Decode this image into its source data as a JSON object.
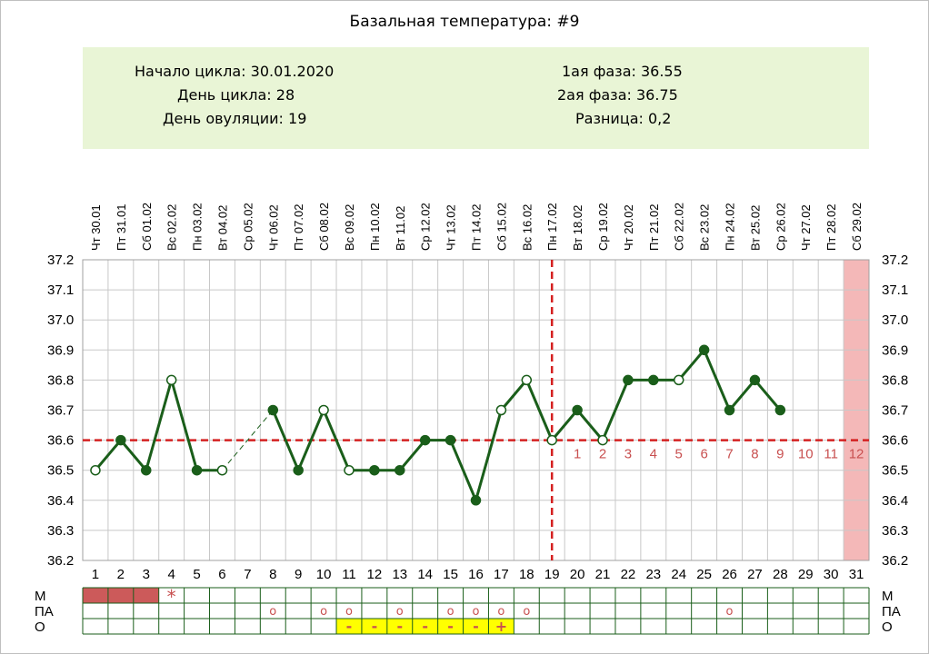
{
  "chart_data": {
    "type": "line",
    "title": "Базальная температура: #9",
    "info": {
      "cycle_start": "Начало цикла: 30.01.2020",
      "cycle_day": "День цикла: 28",
      "ovulation_day": "День овуляции: 19",
      "phase1": "1ая фаза: 36.55",
      "phase2": "2ая фаза: 36.75",
      "difference": "Разница: 0,2"
    },
    "dates": [
      "Чт 30.01",
      "Пт 31.01",
      "Сб 01.02",
      "Вс 02.02",
      "Пн 03.02",
      "Вт 04.02",
      "Ср 05.02",
      "Чт 06.02",
      "Пт 07.02",
      "Сб 08.02",
      "Вс 09.02",
      "Пн 10.02",
      "Вт 11.02",
      "Ср 12.02",
      "Чт 13.02",
      "Пт 14.02",
      "Сб 15.02",
      "Вс 16.02",
      "Пн 17.02",
      "Вт 18.02",
      "Ср 19.02",
      "Чт 20.02",
      "Пт 21.02",
      "Сб 22.02",
      "Вс 23.02",
      "Пн 24.02",
      "Вт 25.02",
      "Ср 26.02",
      "Чт 27.02",
      "Пт 28.02",
      "Сб 29.02"
    ],
    "days": [
      "1",
      "2",
      "3",
      "4",
      "5",
      "6",
      "7",
      "8",
      "9",
      "10",
      "11",
      "12",
      "13",
      "14",
      "15",
      "16",
      "17",
      "18",
      "19",
      "20",
      "21",
      "22",
      "23",
      "24",
      "25",
      "26",
      "27",
      "28",
      "29",
      "30",
      "31"
    ],
    "y_ticks": [
      "37.2",
      "37.1",
      "37.0",
      "36.9",
      "36.8",
      "36.7",
      "36.6",
      "36.5",
      "36.4",
      "36.3",
      "36.2"
    ],
    "ylim": [
      36.2,
      37.2
    ],
    "series": [
      {
        "values": [
          36.5,
          36.6,
          36.5,
          36.8,
          36.5,
          36.5,
          null,
          36.7,
          36.5,
          36.7,
          36.5,
          36.5,
          36.5,
          36.6,
          36.6,
          36.4,
          36.7,
          36.8,
          36.6,
          36.7,
          36.6,
          36.8,
          36.8,
          36.8,
          36.9,
          36.7,
          36.8,
          36.7,
          null,
          null,
          null
        ],
        "marker_filled": [
          false,
          true,
          true,
          false,
          true,
          false,
          null,
          true,
          true,
          false,
          false,
          true,
          true,
          true,
          true,
          true,
          false,
          false,
          false,
          true,
          false,
          true,
          true,
          false,
          true,
          true,
          true,
          true,
          null,
          null,
          null
        ]
      }
    ],
    "gap_segment": {
      "from_day": 6,
      "to_day": 8
    },
    "coverline": 36.6,
    "ovulation_day": 19,
    "post_ovulation_labels": [
      "1",
      "2",
      "3",
      "4",
      "5",
      "6",
      "7",
      "8",
      "9",
      "10",
      "11",
      "12"
    ],
    "highlight_day": 31,
    "rows": [
      {
        "label": "М",
        "period_days": [
          1,
          2,
          3
        ],
        "star": {
          "day": 4,
          "mark": "*"
        }
      },
      {
        "label": "ПА",
        "circle_days": [
          8,
          10,
          11,
          13,
          15,
          16,
          17,
          18,
          26
        ],
        "mark": "o"
      },
      {
        "label": "О",
        "marks": [
          {
            "day": 11,
            "mark": "-"
          },
          {
            "day": 12,
            "mark": "-"
          },
          {
            "day": 13,
            "mark": "-"
          },
          {
            "day": 14,
            "mark": "-"
          },
          {
            "day": 15,
            "mark": "-"
          },
          {
            "day": 16,
            "mark": "-"
          },
          {
            "day": 17,
            "mark": "+"
          }
        ]
      }
    ],
    "colors": {
      "line": "#1a5e1a",
      "coverline": "#d42020",
      "period": "#cc5a5a",
      "highlight": "#f4b8b8",
      "mucus": "#ffff00",
      "cell_border": "#1a5e1a",
      "phase_label": "#c85050",
      "info_bg": "#e9f5d6"
    }
  }
}
